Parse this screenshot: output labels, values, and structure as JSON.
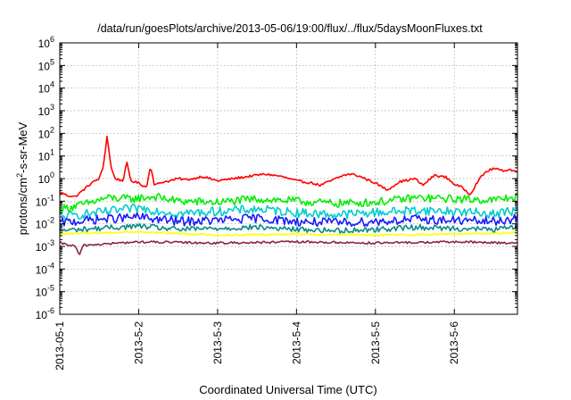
{
  "chart_data": {
    "type": "line",
    "title": "/data/run/goesPlots/archive/2013-05-06/19:00/flux/../flux/5daysMoonFluxes.txt",
    "xlabel": "Coordinated Universal Time (UTC)",
    "ylabel_parts": {
      "base": "protons/cm",
      "sup": "2",
      "rest": "-s-sr-MeV"
    },
    "x_start": "2013-05-01",
    "xlim_days": [
      0,
      5.8
    ],
    "x_ticks": [
      {
        "label": "2013-05-1",
        "day": 0
      },
      {
        "label": "2013-5-2",
        "day": 1
      },
      {
        "label": "2013-5-3",
        "day": 2
      },
      {
        "label": "2013-5-4",
        "day": 3
      },
      {
        "label": "2013-5-5",
        "day": 4
      },
      {
        "label": "2013-5-6",
        "day": 5
      }
    ],
    "y_scale": "log",
    "ylim_exp": [
      -6,
      6
    ],
    "y_ticks": [
      {
        "base": "10",
        "exp": "6",
        "value_exp": 6
      },
      {
        "base": "10",
        "exp": "5",
        "value_exp": 5
      },
      {
        "base": "10",
        "exp": "4",
        "value_exp": 4
      },
      {
        "base": "10",
        "exp": "3",
        "value_exp": 3
      },
      {
        "base": "10",
        "exp": "2",
        "value_exp": 2
      },
      {
        "base": "10",
        "exp": "1",
        "value_exp": 1
      },
      {
        "base": "10",
        "exp": "0",
        "value_exp": 0
      },
      {
        "base": "10",
        "exp": "-1",
        "value_exp": -1
      },
      {
        "base": "10",
        "exp": "-2",
        "value_exp": -2
      },
      {
        "base": "10",
        "exp": "-3",
        "value_exp": -3
      },
      {
        "base": "10",
        "exp": "-4",
        "value_exp": -4
      },
      {
        "base": "10",
        "exp": "-5",
        "value_exp": -5
      },
      {
        "base": "10",
        "exp": "-6",
        "value_exp": -6
      }
    ],
    "grid": true,
    "legend": "none",
    "series": [
      {
        "color": "#ff0000",
        "points": [
          [
            0,
            -0.6
          ],
          [
            0.1,
            -0.75
          ],
          [
            0.2,
            -0.8
          ],
          [
            0.3,
            -0.5
          ],
          [
            0.4,
            -0.2
          ],
          [
            0.5,
            0.0
          ],
          [
            0.55,
            0.5
          ],
          [
            0.6,
            1.9
          ],
          [
            0.65,
            0.5
          ],
          [
            0.7,
            0.0
          ],
          [
            0.8,
            -0.1
          ],
          [
            0.85,
            0.7
          ],
          [
            0.9,
            -0.1
          ],
          [
            1.0,
            -0.2
          ],
          [
            1.1,
            -0.4
          ],
          [
            1.15,
            0.6
          ],
          [
            1.2,
            -0.3
          ],
          [
            1.3,
            -0.15
          ],
          [
            1.4,
            -0.1
          ],
          [
            1.5,
            0.0
          ],
          [
            1.6,
            -0.05
          ],
          [
            1.7,
            0.0
          ],
          [
            1.8,
            0.1
          ],
          [
            1.9,
            0.0
          ],
          [
            2.0,
            -0.1
          ],
          [
            2.2,
            0.0
          ],
          [
            2.4,
            0.1
          ],
          [
            2.6,
            0.2
          ],
          [
            2.8,
            0.1
          ],
          [
            3.0,
            -0.1
          ],
          [
            3.2,
            -0.2
          ],
          [
            3.3,
            -0.3
          ],
          [
            3.4,
            -0.15
          ],
          [
            3.6,
            0.15
          ],
          [
            3.7,
            0.2
          ],
          [
            3.8,
            0.1
          ],
          [
            4.0,
            -0.2
          ],
          [
            4.15,
            -0.5
          ],
          [
            4.3,
            -0.15
          ],
          [
            4.5,
            0.0
          ],
          [
            4.6,
            -0.3
          ],
          [
            4.75,
            0.15
          ],
          [
            4.9,
            0.05
          ],
          [
            5.0,
            -0.25
          ],
          [
            5.1,
            -0.4
          ],
          [
            5.2,
            -0.7
          ],
          [
            5.3,
            -0.1
          ],
          [
            5.4,
            0.3
          ],
          [
            5.5,
            0.45
          ],
          [
            5.6,
            0.35
          ],
          [
            5.7,
            0.4
          ],
          [
            5.8,
            0.3
          ]
        ]
      },
      {
        "color": "#00ee00",
        "points": [
          [
            0,
            -1.35
          ],
          [
            0.3,
            -1.15
          ],
          [
            0.6,
            -0.85
          ],
          [
            0.9,
            -0.9
          ],
          [
            1.2,
            -0.8
          ],
          [
            1.5,
            -1.0
          ],
          [
            2.0,
            -1.05
          ],
          [
            2.5,
            -0.9
          ],
          [
            3.0,
            -1.0
          ],
          [
            3.5,
            -1.1
          ],
          [
            4.0,
            -1.05
          ],
          [
            4.5,
            -0.85
          ],
          [
            5.0,
            -0.9
          ],
          [
            5.5,
            -0.95
          ],
          [
            5.8,
            -0.8
          ]
        ]
      },
      {
        "color": "#00cccc",
        "points": [
          [
            0,
            -1.7
          ],
          [
            0.5,
            -1.5
          ],
          [
            1.0,
            -1.3
          ],
          [
            1.5,
            -1.55
          ],
          [
            2.0,
            -1.45
          ],
          [
            2.5,
            -1.35
          ],
          [
            3.0,
            -1.5
          ],
          [
            3.5,
            -1.6
          ],
          [
            4.0,
            -1.5
          ],
          [
            4.5,
            -1.4
          ],
          [
            5.0,
            -1.45
          ],
          [
            5.5,
            -1.55
          ],
          [
            5.8,
            -1.4
          ]
        ]
      },
      {
        "color": "#1a1aff",
        "points": [
          [
            0,
            -1.95
          ],
          [
            0.5,
            -1.8
          ],
          [
            1.0,
            -1.7
          ],
          [
            1.5,
            -1.9
          ],
          [
            2.0,
            -1.85
          ],
          [
            2.5,
            -1.75
          ],
          [
            3.0,
            -1.9
          ],
          [
            3.5,
            -1.95
          ],
          [
            4.0,
            -1.9
          ],
          [
            4.5,
            -1.8
          ],
          [
            5.0,
            -1.85
          ],
          [
            5.5,
            -1.9
          ],
          [
            5.8,
            -1.75
          ]
        ]
      },
      {
        "color": "#0a8a8a",
        "points": [
          [
            0,
            -2.3
          ],
          [
            0.5,
            -2.2
          ],
          [
            1.0,
            -2.1
          ],
          [
            1.5,
            -2.25
          ],
          [
            2.0,
            -2.2
          ],
          [
            2.5,
            -2.15
          ],
          [
            3.0,
            -2.25
          ],
          [
            3.5,
            -2.3
          ],
          [
            4.0,
            -2.25
          ],
          [
            4.5,
            -2.15
          ],
          [
            5.0,
            -2.2
          ],
          [
            5.5,
            -2.25
          ],
          [
            5.8,
            -2.15
          ]
        ]
      },
      {
        "color": "#ffff00",
        "points": [
          [
            0,
            -2.45
          ],
          [
            1.0,
            -2.35
          ],
          [
            2.0,
            -2.5
          ],
          [
            3.0,
            -2.45
          ],
          [
            4.0,
            -2.5
          ],
          [
            5.0,
            -2.45
          ],
          [
            5.8,
            -2.4
          ]
        ]
      },
      {
        "color": "#8b2252",
        "points": [
          [
            0,
            -2.85
          ],
          [
            0.2,
            -3.0
          ],
          [
            0.25,
            -3.4
          ],
          [
            0.3,
            -2.95
          ],
          [
            1.0,
            -2.8
          ],
          [
            2.0,
            -2.85
          ],
          [
            3.0,
            -2.8
          ],
          [
            4.0,
            -2.85
          ],
          [
            5.0,
            -2.8
          ],
          [
            5.8,
            -2.85
          ]
        ]
      }
    ]
  }
}
